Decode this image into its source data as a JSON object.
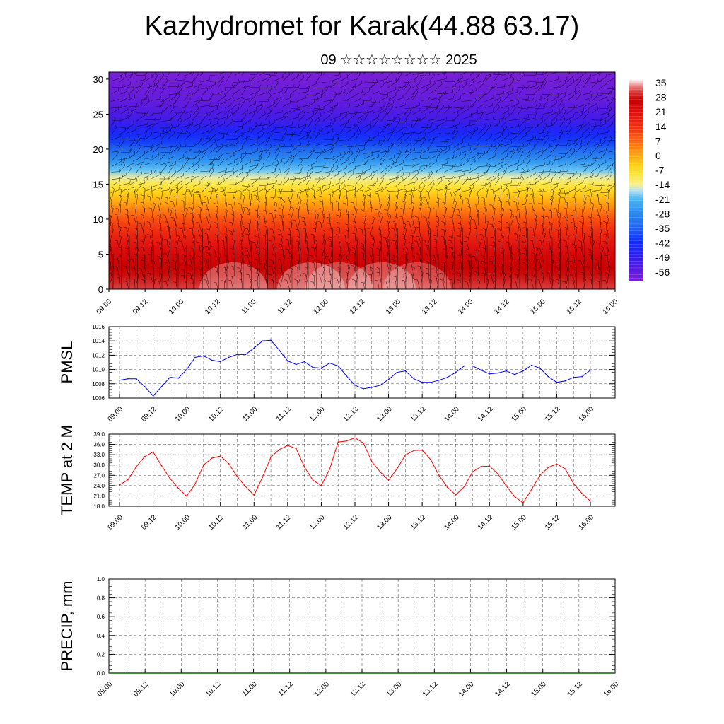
{
  "title": "Kazhydromet for Karak(44.88 63.17)",
  "subtitle": "09 ☆☆☆☆☆☆☆☆ 2025",
  "chart_data": [
    {
      "type": "heatmap",
      "name": "cross-section",
      "x_ticks": [
        "09.00",
        "09.12",
        "10.00",
        "10.12",
        "11.00",
        "11.12",
        "12.00",
        "12.12",
        "13.00",
        "13.12",
        "14.00",
        "14.12",
        "15.00",
        "15.12",
        "16.00"
      ],
      "y_ticks": [
        "0",
        "5",
        "10",
        "15",
        "20",
        "25",
        "30"
      ],
      "ylim": [
        0,
        31
      ],
      "colorbar_labels": [
        "35",
        "28",
        "21",
        "14",
        "7",
        "0",
        "-7",
        "-14",
        "-21",
        "-28",
        "-35",
        "-42",
        "-49",
        "-56"
      ],
      "colors": [
        "#7a1fd6",
        "#2a1ff0",
        "#1030ff",
        "#2a8cf0",
        "#4ab8f5",
        "#bfe4f5",
        "#f8f08a",
        "#ffe020",
        "#ffaa10",
        "#ff6a10",
        "#f03010",
        "#e01010",
        "#c80000",
        "#ffffff"
      ],
      "temperature_profile": [
        {
          "height": 0,
          "value": 32
        },
        {
          "height": 5,
          "value": 24
        },
        {
          "height": 10,
          "value": 10
        },
        {
          "height": 15,
          "value": -10
        },
        {
          "height": 18,
          "value": -25
        },
        {
          "height": 21,
          "value": -40
        },
        {
          "height": 24,
          "value": -52
        },
        {
          "height": 27,
          "value": -58
        },
        {
          "height": 31,
          "value": -62
        }
      ]
    },
    {
      "type": "line",
      "ylabel": "PMSL",
      "ylim": [
        1006,
        1016
      ],
      "y_ticks": [
        "1006",
        "1008",
        "1010",
        "1012",
        "1014",
        "1016"
      ],
      "x_ticks": [
        "09.00",
        "09.12",
        "10.00",
        "10.12",
        "11.00",
        "11.12",
        "12.00",
        "12.12",
        "13.00",
        "13.12",
        "14.00",
        "14.12",
        "15.00",
        "15.12",
        "16.00"
      ],
      "color": "#0000ff",
      "x_hours": [
        0,
        3,
        6,
        9,
        12,
        15,
        18,
        21,
        24,
        27,
        30,
        33,
        36,
        39,
        42,
        45,
        48,
        51,
        54,
        57,
        60,
        63,
        66,
        69,
        72,
        75,
        78,
        81,
        84,
        87,
        90,
        93,
        96,
        99,
        102,
        105,
        108,
        111,
        114,
        117,
        120,
        123,
        126,
        129,
        132,
        135,
        138,
        141,
        144,
        147,
        150,
        153,
        156,
        159,
        162,
        165,
        168
      ],
      "values": [
        1008.5,
        1008.7,
        1008.7,
        1007.6,
        1006.3,
        1007.6,
        1008.9,
        1008.8,
        1010.0,
        1011.7,
        1011.9,
        1011.3,
        1011.1,
        1011.7,
        1012.1,
        1012.1,
        1013.0,
        1014.0,
        1014.1,
        1012.7,
        1011.2,
        1010.7,
        1011.1,
        1010.3,
        1010.2,
        1010.9,
        1010.5,
        1009.1,
        1007.8,
        1007.3,
        1007.5,
        1007.8,
        1008.6,
        1009.6,
        1009.8,
        1008.7,
        1008.2,
        1008.2,
        1008.5,
        1008.9,
        1009.6,
        1010.5,
        1010.5,
        1009.9,
        1009.4,
        1009.5,
        1009.8,
        1009.3,
        1009.8,
        1010.6,
        1010.2,
        1009.0,
        1008.2,
        1008.4,
        1008.9,
        1009.0,
        1009.9
      ]
    },
    {
      "type": "line",
      "ylabel": "TEMP at 2 M",
      "ylim": [
        18.0,
        39.0
      ],
      "y_ticks": [
        "18.0",
        "21.0",
        "24.0",
        "27.0",
        "30.0",
        "33.0",
        "36.0",
        "39.0"
      ],
      "x_ticks": [
        "09.00",
        "09.12",
        "10.00",
        "10.12",
        "11.00",
        "11.12",
        "12.00",
        "12.12",
        "13.00",
        "13.12",
        "14.00",
        "14.12",
        "15.00",
        "15.12",
        "16.00"
      ],
      "color": "#ff0000",
      "x_hours": [
        0,
        3,
        6,
        9,
        12,
        15,
        18,
        21,
        24,
        27,
        30,
        33,
        36,
        39,
        42,
        45,
        48,
        51,
        54,
        57,
        60,
        63,
        66,
        69,
        72,
        75,
        78,
        81,
        84,
        87,
        90,
        93,
        96,
        99,
        102,
        105,
        108,
        111,
        114,
        117,
        120,
        123,
        126,
        129,
        132,
        135,
        138,
        141,
        144,
        147,
        150,
        153,
        156,
        159,
        162,
        165,
        168
      ],
      "values": [
        24.2,
        25.7,
        29.5,
        32.5,
        33.8,
        29.8,
        26.1,
        23.2,
        20.9,
        24.5,
        30.0,
        32.0,
        32.6,
        30.4,
        26.6,
        23.7,
        21.2,
        26.4,
        32.3,
        34.5,
        35.7,
        34.8,
        29.4,
        25.6,
        24.0,
        28.8,
        36.7,
        37.0,
        37.9,
        36.4,
        31.0,
        28.0,
        25.6,
        28.9,
        32.9,
        34.2,
        34.3,
        31.6,
        27.0,
        23.5,
        21.3,
        23.7,
        28.0,
        29.6,
        29.7,
        27.4,
        23.9,
        20.8,
        19.0,
        22.9,
        27.0,
        29.3,
        30.3,
        28.9,
        24.6,
        21.7,
        19.5
      ]
    },
    {
      "type": "line",
      "ylabel": "PRECIP, mm",
      "ylim": [
        0.0,
        1.0
      ],
      "y_ticks": [
        "0.0",
        "0.2",
        "0.4",
        "0.6",
        "0.8",
        "1.0"
      ],
      "x_ticks": [
        "09.00",
        "09.12",
        "10.00",
        "10.12",
        "11.00",
        "11.12",
        "12.00",
        "12.12",
        "13.00",
        "13.12",
        "14.00",
        "14.12",
        "15.00",
        "15.12",
        "16.00"
      ],
      "color": "#006400",
      "x_hours": [
        0,
        168
      ],
      "values": [
        0.0,
        0.0
      ]
    }
  ]
}
